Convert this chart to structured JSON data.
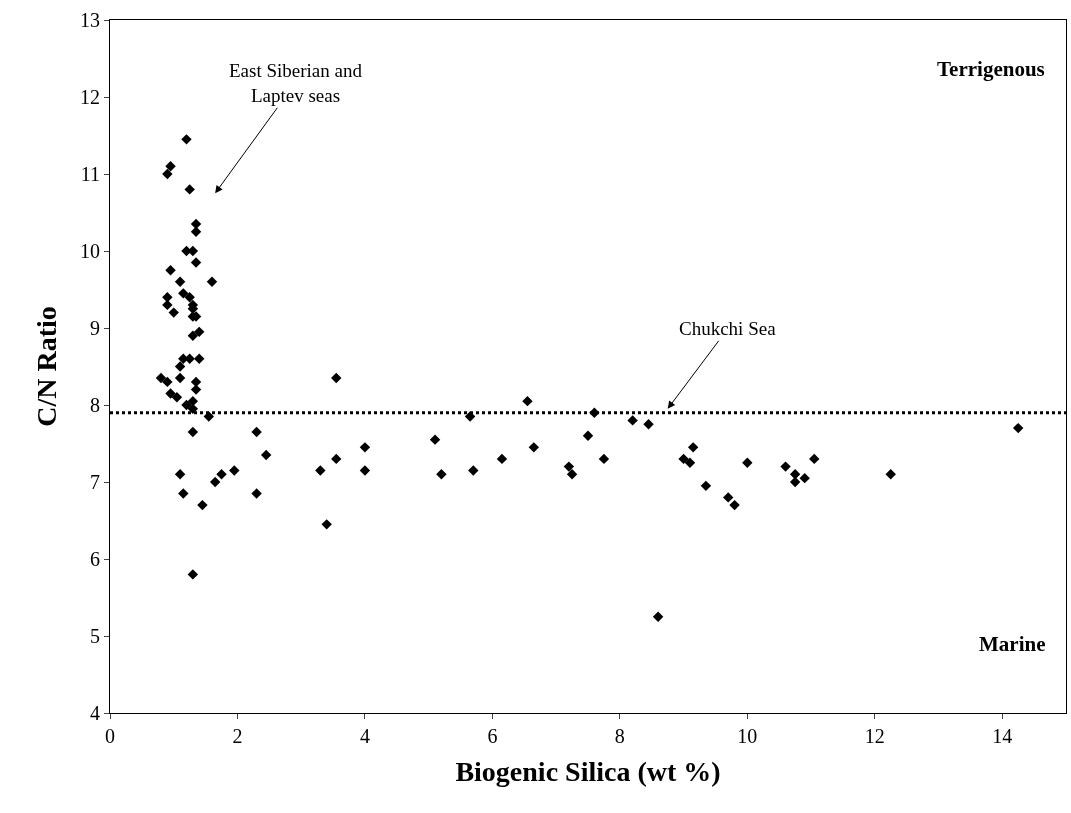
{
  "chart_data": {
    "type": "scatter",
    "xlabel": "Biogenic Silica (wt %)",
    "ylabel": "C/N Ratio",
    "marker": "diamond",
    "legend": false,
    "x": [
      1.2,
      0.95,
      0.9,
      1.25,
      1.35,
      1.35,
      1.2,
      1.3,
      1.35,
      0.95,
      1.6,
      1.1,
      1.15,
      1.25,
      0.9,
      0.9,
      1.3,
      1.3,
      1.35,
      1.0,
      1.3,
      1.4,
      1.3,
      1.15,
      1.25,
      1.4,
      1.1,
      1.1,
      0.8,
      0.9,
      1.35,
      1.35,
      0.95,
      1.05,
      1.3,
      1.2,
      1.3,
      1.55,
      1.3,
      1.1,
      1.15,
      1.45,
      1.3,
      1.65,
      1.75,
      1.95,
      2.3,
      2.3,
      2.45,
      3.3,
      3.4,
      3.55,
      3.55,
      4.0,
      4.0,
      5.1,
      5.2,
      5.65,
      5.7,
      6.15,
      6.55,
      6.65,
      7.2,
      7.25,
      7.5,
      7.6,
      7.75,
      8.2,
      8.45,
      8.6,
      9.0,
      9.1,
      9.15,
      9.35,
      9.7,
      9.8,
      10.0,
      10.6,
      10.75,
      10.75,
      10.9,
      11.05,
      12.25,
      14.25
    ],
    "values": [
      11.45,
      11.1,
      11.0,
      10.8,
      10.35,
      10.25,
      10.0,
      10.0,
      9.85,
      9.75,
      9.6,
      9.6,
      9.45,
      9.4,
      9.4,
      9.3,
      9.3,
      9.25,
      9.15,
      9.2,
      9.15,
      8.95,
      8.9,
      8.6,
      8.6,
      8.6,
      8.5,
      8.35,
      8.35,
      8.3,
      8.3,
      8.2,
      8.15,
      8.1,
      8.05,
      8.0,
      7.95,
      7.85,
      7.65,
      7.1,
      6.85,
      6.7,
      5.8,
      7.0,
      7.1,
      7.15,
      7.65,
      6.85,
      7.35,
      7.15,
      6.45,
      8.35,
      7.3,
      7.45,
      7.15,
      7.55,
      7.1,
      7.85,
      7.15,
      7.3,
      8.05,
      7.45,
      7.2,
      7.1,
      7.6,
      7.9,
      7.3,
      7.8,
      7.75,
      5.25,
      7.3,
      7.25,
      7.45,
      6.95,
      6.8,
      6.7,
      7.25,
      7.2,
      7.1,
      7.0,
      7.05,
      7.3,
      7.1,
      7.7
    ],
    "color": "#000000",
    "xlim": [
      0,
      15
    ],
    "xticks": [
      0,
      2,
      4,
      6,
      8,
      10,
      12,
      14
    ],
    "ylim": [
      4,
      13
    ],
    "yticks": [
      4,
      5,
      6,
      7,
      8,
      9,
      10,
      11,
      12,
      13
    ],
    "ref_lines": [
      {
        "axis": "y",
        "value": 7.9,
        "color": "#000000",
        "line_style": "dotted"
      }
    ],
    "annotations": [
      "East Siberian and\nLaptev seas",
      {
        "text": "Chukchi Sea",
        "x": 8.75,
        "y": 7.95
      },
      "Terrigenous",
      "Marine"
    ]
  }
}
